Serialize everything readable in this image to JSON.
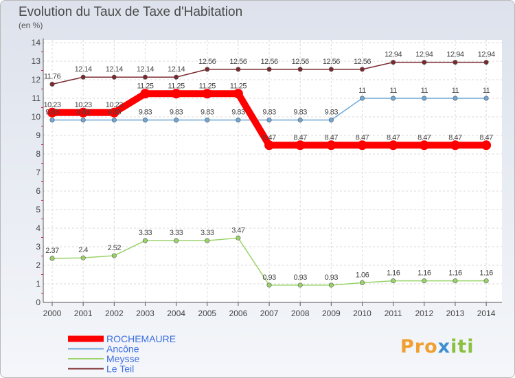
{
  "title": "Evolution du Taux de Taxe d'Habitation",
  "subtitle": "(en %)",
  "logo": {
    "part1": "Pro",
    "part2": "x",
    "part3": "iti"
  },
  "chart_data": {
    "type": "line",
    "x": [
      "2000",
      "2001",
      "2002",
      "2003",
      "2004",
      "2005",
      "2006",
      "2007",
      "2008",
      "2009",
      "2010",
      "2011",
      "2012",
      "2013",
      "2014"
    ],
    "ylim": [
      0,
      14
    ],
    "yticks": [
      0,
      1,
      2,
      3,
      4,
      5,
      6,
      7,
      8,
      9,
      10,
      11,
      12,
      13,
      14
    ],
    "grid": true,
    "legend_position": "bottom-left",
    "series": [
      {
        "name": "ROCHEMAURE",
        "color": "#ff0000",
        "values": [
          10.23,
          10.23,
          10.23,
          11.25,
          11.25,
          11.25,
          11.25,
          8.47,
          8.47,
          8.47,
          8.47,
          8.47,
          8.47,
          8.47,
          8.47
        ],
        "labels": [
          "10.23",
          "10.23",
          "10.23",
          "11.25",
          "11.25",
          "11.25",
          "11.25",
          "8.47",
          "8.47",
          "8.47",
          "8.47",
          "8.47",
          "8.47",
          "8.47",
          "8.47"
        ]
      },
      {
        "name": "Ancône",
        "color": "#6fa8d8",
        "values": [
          9.83,
          9.83,
          9.83,
          9.83,
          9.83,
          9.83,
          9.83,
          9.83,
          9.83,
          9.83,
          11,
          11,
          11,
          11,
          11
        ],
        "labels": [
          "9.83",
          "9.83",
          "9.83",
          "9.83",
          "9.83",
          "9.83",
          "9.83",
          "9.83",
          "9.83",
          "9.83",
          "11",
          "11",
          "11",
          "11",
          "11"
        ]
      },
      {
        "name": "Meysse",
        "color": "#9ad36a",
        "values": [
          2.37,
          2.4,
          2.52,
          3.33,
          3.33,
          3.33,
          3.47,
          0.93,
          0.93,
          0.93,
          1.06,
          1.16,
          1.16,
          1.16,
          1.16
        ],
        "labels": [
          "2.37",
          "2.4",
          "2.52",
          "3.33",
          "3.33",
          "3.33",
          "3.47",
          "0.93",
          "0.93",
          "0.93",
          "1.06",
          "1.16",
          "1.16",
          "1.16",
          "1.16"
        ]
      },
      {
        "name": "Le Teil",
        "color": "#7a2a2f",
        "values": [
          11.76,
          12.14,
          12.14,
          12.14,
          12.14,
          12.56,
          12.56,
          12.56,
          12.56,
          12.56,
          12.56,
          12.94,
          12.94,
          12.94,
          12.94
        ],
        "labels": [
          "11.76",
          "12.14",
          "12.14",
          "12.14",
          "12.14",
          "12.56",
          "12.56",
          "12.56",
          "12.56",
          "12.56",
          "12.56",
          "12.94",
          "12.94",
          "12.94",
          "12.94"
        ]
      }
    ]
  }
}
